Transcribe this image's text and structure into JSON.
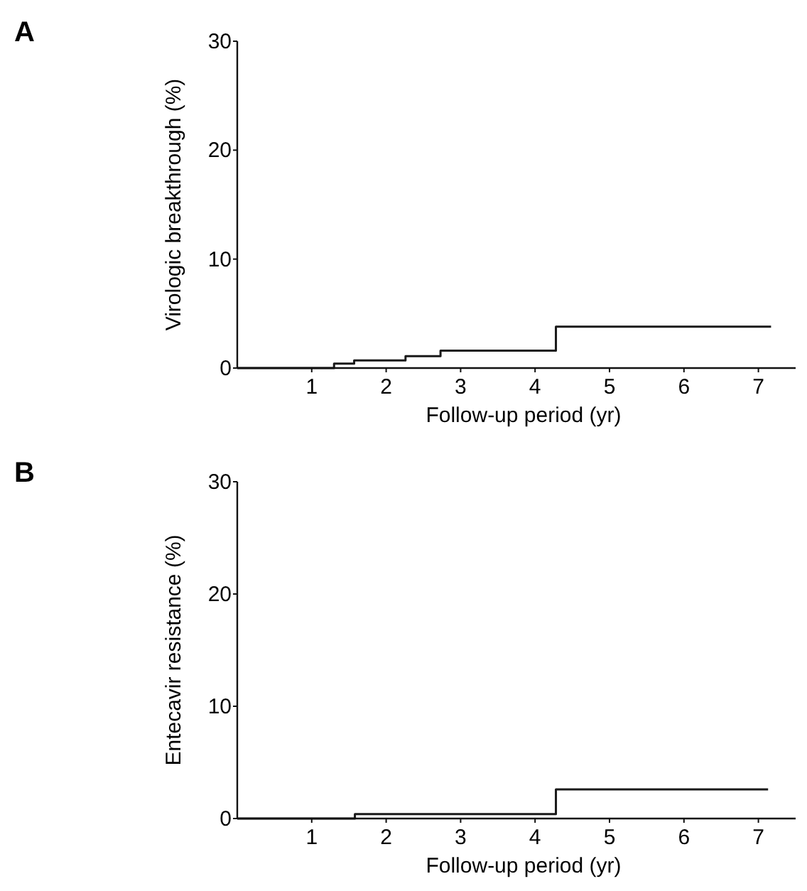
{
  "chart_data": [
    {
      "type": "step",
      "annotations": [
        "A"
      ],
      "xlabel": "Follow-up period (yr)",
      "ylabel": "Virologic breakthrough (%)",
      "xlim": [
        0,
        7.5
      ],
      "ylim": [
        0,
        30
      ],
      "xticks": [
        1,
        2,
        3,
        4,
        5,
        6,
        7
      ],
      "yticks": [
        0,
        10,
        20,
        30
      ],
      "grid": false,
      "series": [
        {
          "color": "#1a1a1a",
          "x": [
            0,
            1.3,
            1.57,
            2.26,
            2.73,
            4.28,
            7.17
          ],
          "values": [
            0,
            0.4,
            0.7,
            1.1,
            1.6,
            3.8,
            3.8
          ]
        }
      ]
    },
    {
      "type": "step",
      "annotations": [
        "B"
      ],
      "xlabel": "Follow-up period (yr)",
      "ylabel": "Entecavir resistance (%)",
      "xlim": [
        0,
        7.5
      ],
      "ylim": [
        0,
        30
      ],
      "xticks": [
        1,
        2,
        3,
        4,
        5,
        6,
        7
      ],
      "yticks": [
        0,
        10,
        20,
        30
      ],
      "grid": false,
      "series": [
        {
          "color": "#1a1a1a",
          "x": [
            0,
            1.58,
            4.28,
            7.13
          ],
          "values": [
            0,
            0.4,
            2.6,
            2.6
          ]
        }
      ]
    }
  ]
}
